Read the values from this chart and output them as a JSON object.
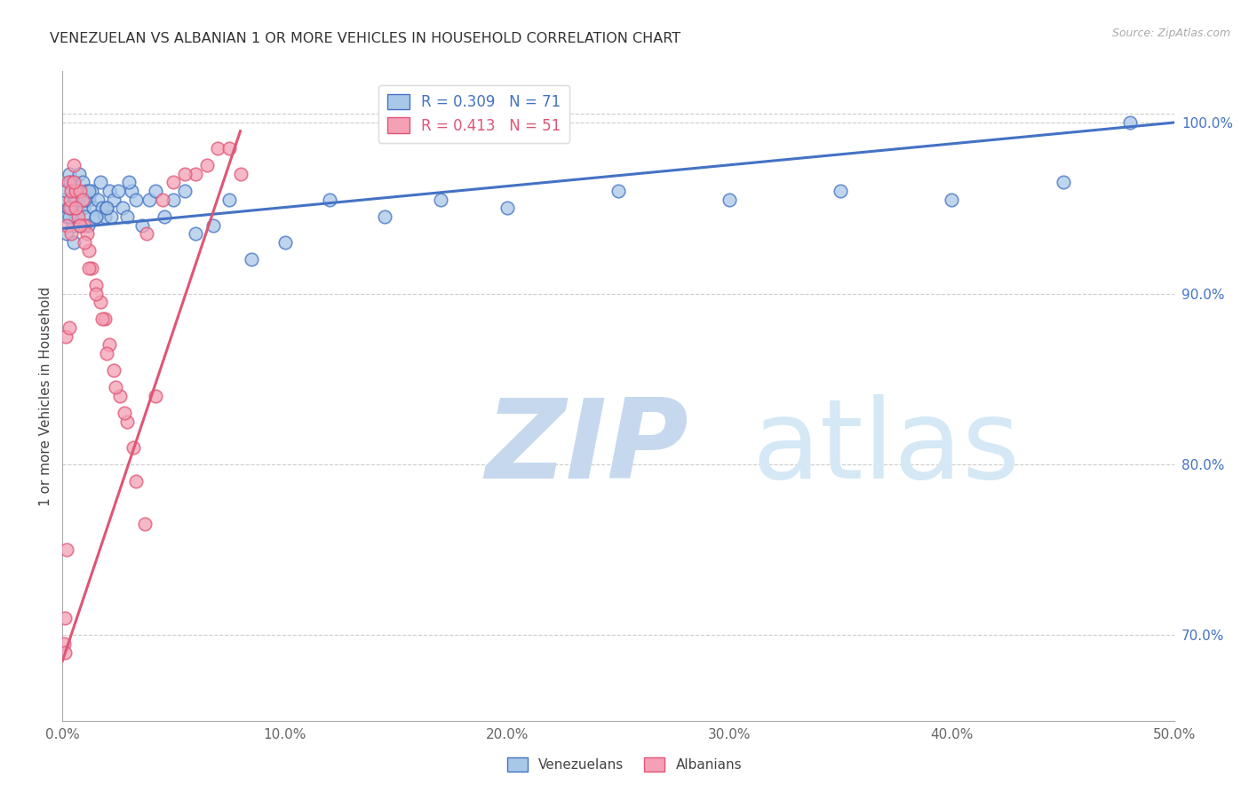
{
  "title": "VENEZUELAN VS ALBANIAN 1 OR MORE VEHICLES IN HOUSEHOLD CORRELATION CHART",
  "source": "Source: ZipAtlas.com",
  "ylabel": "1 or more Vehicles in Household",
  "xlim": [
    0.0,
    50.0
  ],
  "ylim": [
    65.0,
    103.0
  ],
  "yticks": [
    70.0,
    80.0,
    90.0,
    100.0
  ],
  "ytick_labels": [
    "70.0%",
    "80.0%",
    "90.0%",
    "100.0%"
  ],
  "xticks": [
    0.0,
    10.0,
    20.0,
    30.0,
    40.0,
    50.0
  ],
  "xtick_labels": [
    "0.0%",
    "10.0%",
    "20.0%",
    "30.0%",
    "40.0%",
    "50.0%"
  ],
  "venezuelan_color": "#a8c8e8",
  "albanian_color": "#f4a0b5",
  "trendline_venezuelan_color": "#4472c4",
  "trendline_albanian_color": "#e05575",
  "R_venezuelan": 0.309,
  "N_venezuelan": 71,
  "R_albanian": 0.413,
  "N_albanian": 51,
  "legend_label_venezuelan": "Venezuelans",
  "legend_label_albanian": "Albanians",
  "watermark_zip": "ZIP",
  "watermark_atlas": "atlas",
  "watermark_color": "#d0e4f5",
  "venezuelan_x": [
    0.1,
    0.15,
    0.2,
    0.25,
    0.3,
    0.35,
    0.4,
    0.45,
    0.5,
    0.55,
    0.6,
    0.65,
    0.7,
    0.75,
    0.8,
    0.85,
    0.9,
    0.95,
    1.0,
    1.05,
    1.1,
    1.15,
    1.2,
    1.3,
    1.4,
    1.5,
    1.6,
    1.7,
    1.8,
    1.9,
    2.0,
    2.1,
    2.2,
    2.3,
    2.5,
    2.7,
    2.9,
    3.1,
    3.3,
    3.6,
    3.9,
    4.2,
    4.6,
    5.0,
    5.5,
    6.0,
    6.8,
    7.5,
    8.5,
    10.0,
    12.0,
    14.5,
    17.0,
    20.0,
    25.0,
    30.0,
    35.0,
    40.0,
    45.0,
    48.0,
    0.2,
    0.3,
    0.4,
    0.5,
    0.6,
    0.8,
    1.0,
    1.2,
    1.5,
    2.0,
    3.0
  ],
  "venezuelan_y": [
    95.5,
    96.0,
    94.5,
    95.0,
    97.0,
    96.5,
    95.0,
    94.0,
    96.5,
    95.5,
    94.5,
    96.0,
    95.0,
    97.0,
    95.5,
    94.0,
    96.5,
    95.0,
    94.5,
    96.0,
    95.5,
    94.0,
    95.5,
    96.0,
    95.0,
    94.5,
    95.5,
    96.5,
    95.0,
    94.5,
    95.0,
    96.0,
    94.5,
    95.5,
    96.0,
    95.0,
    94.5,
    96.0,
    95.5,
    94.0,
    95.5,
    96.0,
    94.5,
    95.5,
    96.0,
    93.5,
    94.0,
    95.5,
    92.0,
    93.0,
    95.5,
    94.5,
    95.5,
    95.0,
    96.0,
    95.5,
    96.0,
    95.5,
    96.5,
    100.0,
    93.5,
    94.5,
    95.0,
    93.0,
    95.5,
    94.0,
    95.5,
    96.0,
    94.5,
    95.0,
    96.5
  ],
  "albanian_x": [
    0.05,
    0.1,
    0.15,
    0.2,
    0.25,
    0.3,
    0.35,
    0.4,
    0.5,
    0.6,
    0.7,
    0.8,
    0.9,
    1.0,
    1.1,
    1.2,
    1.3,
    1.5,
    1.7,
    1.9,
    2.1,
    2.3,
    2.6,
    2.9,
    3.3,
    3.7,
    4.2,
    5.0,
    6.0,
    7.0,
    0.1,
    0.2,
    0.3,
    0.4,
    0.5,
    0.6,
    0.8,
    1.0,
    1.2,
    1.5,
    1.8,
    2.0,
    2.4,
    2.8,
    3.2,
    3.8,
    4.5,
    5.5,
    6.5,
    7.5,
    8.0
  ],
  "albanian_y": [
    69.5,
    71.0,
    87.5,
    94.0,
    96.5,
    95.0,
    95.5,
    96.0,
    97.5,
    96.0,
    94.5,
    96.0,
    95.5,
    94.0,
    93.5,
    92.5,
    91.5,
    90.5,
    89.5,
    88.5,
    87.0,
    85.5,
    84.0,
    82.5,
    79.0,
    76.5,
    84.0,
    96.5,
    97.0,
    98.5,
    69.0,
    75.0,
    88.0,
    93.5,
    96.5,
    95.0,
    94.0,
    93.0,
    91.5,
    90.0,
    88.5,
    86.5,
    84.5,
    83.0,
    81.0,
    93.5,
    95.5,
    97.0,
    97.5,
    98.5,
    97.0
  ],
  "ven_trend_x": [
    0.0,
    50.0
  ],
  "ven_trend_y": [
    93.8,
    100.0
  ],
  "alb_trend_x": [
    0.0,
    8.0
  ],
  "alb_trend_y": [
    68.5,
    99.5
  ]
}
